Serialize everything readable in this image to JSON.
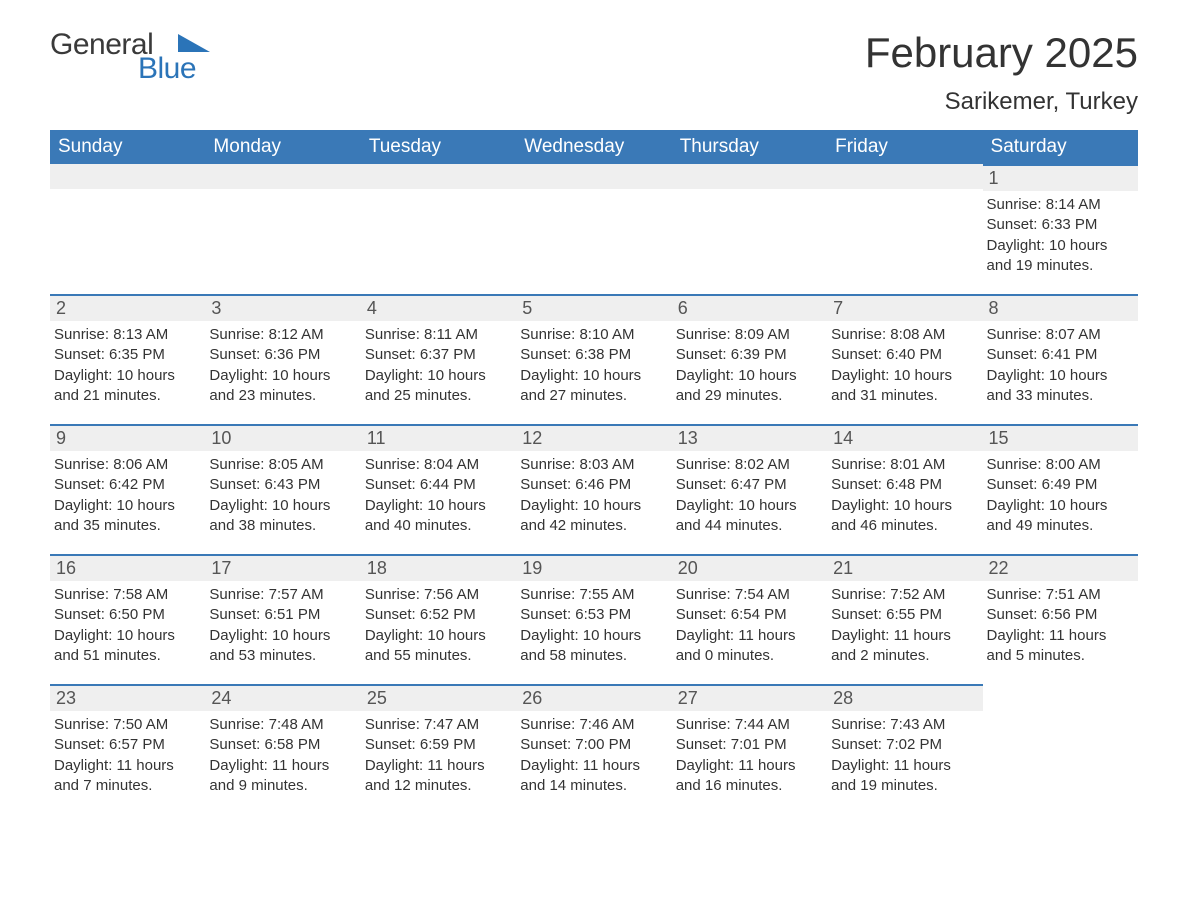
{
  "logo": {
    "word1": "General",
    "word2": "Blue",
    "brand_color": "#2b74b8",
    "text_color": "#3a3a3a"
  },
  "header": {
    "month_title": "February 2025",
    "location": "Sarikemer, Turkey"
  },
  "colors": {
    "header_bg": "#3a79b7",
    "header_fg": "#ffffff",
    "daynum_bg": "#efefef",
    "daynum_fg": "#555555",
    "body_text": "#333333",
    "rule": "#3a79b7",
    "page_bg": "#ffffff"
  },
  "weekdays": [
    "Sunday",
    "Monday",
    "Tuesday",
    "Wednesday",
    "Thursday",
    "Friday",
    "Saturday"
  ],
  "weeks": [
    [
      null,
      null,
      null,
      null,
      null,
      null,
      {
        "n": "1",
        "sunrise": "Sunrise: 8:14 AM",
        "sunset": "Sunset: 6:33 PM",
        "daylight": "Daylight: 10 hours and 19 minutes."
      }
    ],
    [
      {
        "n": "2",
        "sunrise": "Sunrise: 8:13 AM",
        "sunset": "Sunset: 6:35 PM",
        "daylight": "Daylight: 10 hours and 21 minutes."
      },
      {
        "n": "3",
        "sunrise": "Sunrise: 8:12 AM",
        "sunset": "Sunset: 6:36 PM",
        "daylight": "Daylight: 10 hours and 23 minutes."
      },
      {
        "n": "4",
        "sunrise": "Sunrise: 8:11 AM",
        "sunset": "Sunset: 6:37 PM",
        "daylight": "Daylight: 10 hours and 25 minutes."
      },
      {
        "n": "5",
        "sunrise": "Sunrise: 8:10 AM",
        "sunset": "Sunset: 6:38 PM",
        "daylight": "Daylight: 10 hours and 27 minutes."
      },
      {
        "n": "6",
        "sunrise": "Sunrise: 8:09 AM",
        "sunset": "Sunset: 6:39 PM",
        "daylight": "Daylight: 10 hours and 29 minutes."
      },
      {
        "n": "7",
        "sunrise": "Sunrise: 8:08 AM",
        "sunset": "Sunset: 6:40 PM",
        "daylight": "Daylight: 10 hours and 31 minutes."
      },
      {
        "n": "8",
        "sunrise": "Sunrise: 8:07 AM",
        "sunset": "Sunset: 6:41 PM",
        "daylight": "Daylight: 10 hours and 33 minutes."
      }
    ],
    [
      {
        "n": "9",
        "sunrise": "Sunrise: 8:06 AM",
        "sunset": "Sunset: 6:42 PM",
        "daylight": "Daylight: 10 hours and 35 minutes."
      },
      {
        "n": "10",
        "sunrise": "Sunrise: 8:05 AM",
        "sunset": "Sunset: 6:43 PM",
        "daylight": "Daylight: 10 hours and 38 minutes."
      },
      {
        "n": "11",
        "sunrise": "Sunrise: 8:04 AM",
        "sunset": "Sunset: 6:44 PM",
        "daylight": "Daylight: 10 hours and 40 minutes."
      },
      {
        "n": "12",
        "sunrise": "Sunrise: 8:03 AM",
        "sunset": "Sunset: 6:46 PM",
        "daylight": "Daylight: 10 hours and 42 minutes."
      },
      {
        "n": "13",
        "sunrise": "Sunrise: 8:02 AM",
        "sunset": "Sunset: 6:47 PM",
        "daylight": "Daylight: 10 hours and 44 minutes."
      },
      {
        "n": "14",
        "sunrise": "Sunrise: 8:01 AM",
        "sunset": "Sunset: 6:48 PM",
        "daylight": "Daylight: 10 hours and 46 minutes."
      },
      {
        "n": "15",
        "sunrise": "Sunrise: 8:00 AM",
        "sunset": "Sunset: 6:49 PM",
        "daylight": "Daylight: 10 hours and 49 minutes."
      }
    ],
    [
      {
        "n": "16",
        "sunrise": "Sunrise: 7:58 AM",
        "sunset": "Sunset: 6:50 PM",
        "daylight": "Daylight: 10 hours and 51 minutes."
      },
      {
        "n": "17",
        "sunrise": "Sunrise: 7:57 AM",
        "sunset": "Sunset: 6:51 PM",
        "daylight": "Daylight: 10 hours and 53 minutes."
      },
      {
        "n": "18",
        "sunrise": "Sunrise: 7:56 AM",
        "sunset": "Sunset: 6:52 PM",
        "daylight": "Daylight: 10 hours and 55 minutes."
      },
      {
        "n": "19",
        "sunrise": "Sunrise: 7:55 AM",
        "sunset": "Sunset: 6:53 PM",
        "daylight": "Daylight: 10 hours and 58 minutes."
      },
      {
        "n": "20",
        "sunrise": "Sunrise: 7:54 AM",
        "sunset": "Sunset: 6:54 PM",
        "daylight": "Daylight: 11 hours and 0 minutes."
      },
      {
        "n": "21",
        "sunrise": "Sunrise: 7:52 AM",
        "sunset": "Sunset: 6:55 PM",
        "daylight": "Daylight: 11 hours and 2 minutes."
      },
      {
        "n": "22",
        "sunrise": "Sunrise: 7:51 AM",
        "sunset": "Sunset: 6:56 PM",
        "daylight": "Daylight: 11 hours and 5 minutes."
      }
    ],
    [
      {
        "n": "23",
        "sunrise": "Sunrise: 7:50 AM",
        "sunset": "Sunset: 6:57 PM",
        "daylight": "Daylight: 11 hours and 7 minutes."
      },
      {
        "n": "24",
        "sunrise": "Sunrise: 7:48 AM",
        "sunset": "Sunset: 6:58 PM",
        "daylight": "Daylight: 11 hours and 9 minutes."
      },
      {
        "n": "25",
        "sunrise": "Sunrise: 7:47 AM",
        "sunset": "Sunset: 6:59 PM",
        "daylight": "Daylight: 11 hours and 12 minutes."
      },
      {
        "n": "26",
        "sunrise": "Sunrise: 7:46 AM",
        "sunset": "Sunset: 7:00 PM",
        "daylight": "Daylight: 11 hours and 14 minutes."
      },
      {
        "n": "27",
        "sunrise": "Sunrise: 7:44 AM",
        "sunset": "Sunset: 7:01 PM",
        "daylight": "Daylight: 11 hours and 16 minutes."
      },
      {
        "n": "28",
        "sunrise": "Sunrise: 7:43 AM",
        "sunset": "Sunset: 7:02 PM",
        "daylight": "Daylight: 11 hours and 19 minutes."
      },
      null
    ]
  ]
}
